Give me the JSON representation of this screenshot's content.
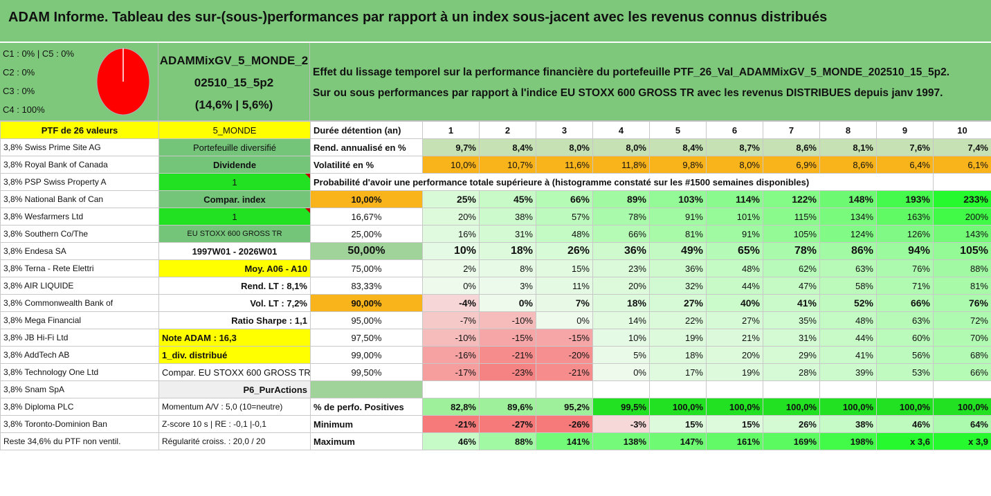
{
  "title": "ADAM Informe. Tableau des sur-(sous-)performances par rapport à un index sous-jacent avec les revenus connus distribués",
  "allocation": [
    "C1 : 0% | C5 : 0%",
    "C2 : 0%",
    "C3 : 0%",
    "C4 : 100%"
  ],
  "pie_colors": {
    "fill": "#ff0000",
    "line": "#ffffff"
  },
  "portfolio_name": {
    "line1": "ADAMMixGV_5_MONDE_2",
    "line2": "02510_15_5p2",
    "line3": "(14,6% | 5,6%)"
  },
  "description": {
    "line1": "Effet du lissage temporel sur la performance financière du portefeuille PTF_26_Val_ADAMMixGV_5_MONDE_202510_15_5p2.",
    "line2": "Sur ou sous performances par rapport à l'indice EU STOXX 600 GROSS TR avec les revenus DISTRIBUES depuis janv 1997."
  },
  "col_a": [
    "PTF de 26 valeurs",
    "3,8% Swiss Prime Site AG",
    "3,8% Royal Bank of Canada",
    "3,8% PSP Swiss Property A",
    "3,8% National Bank of Can",
    "3,8% Wesfarmers Ltd",
    "3,8% Southern Co/The",
    "3,8% Endesa SA",
    "3,8% Terna - Rete Elettri",
    "3,8% AIR LIQUIDE",
    "3,8% Commonwealth Bank of",
    "3,8% Mega Financial",
    "3,8% JB Hi-Fi Ltd",
    "3,8% AddTech AB",
    "3,8% Technology One Ltd",
    "3,8% Snam SpA",
    "3,8% Diploma PLC",
    "3,8% Toronto-Dominion Ban",
    "Reste 34,6% du PTF non ventil."
  ],
  "col_b": [
    "5_MONDE",
    "Portefeuille diversifié",
    "Dividende",
    "1",
    "Compar. index",
    "1",
    "EU STOXX 600 GROSS TR",
    "1997W01 - 2026W01",
    "Moy. A06 - A10",
    "Rend. LT : 8,1%",
    "Vol. LT : 7,2%",
    "Ratio Sharpe : 1,1",
    "Note ADAM : 16,3",
    "1_div. distribué",
    "Compar. EU STOXX 600 GROSS TR",
    "P6_PurActions",
    "Momentum A/V : 5,0 (10=neutre)",
    "Z-score 10 s | RE : -0,1 |-0,1",
    "Régularité croiss. : 20,0 / 20"
  ],
  "years_label": "Durée détention (an)",
  "years": [
    "1",
    "2",
    "3",
    "4",
    "5",
    "6",
    "7",
    "8",
    "9",
    "10"
  ],
  "rend_label": "Rend. annualisé en %",
  "rend": [
    "9,7%",
    "8,4%",
    "8,0%",
    "8,0%",
    "8,4%",
    "8,7%",
    "8,6%",
    "8,1%",
    "7,6%",
    "7,4%"
  ],
  "vol_label": "Volatilité en %",
  "vol": [
    "10,0%",
    "10,7%",
    "11,6%",
    "11,8%",
    "9,8%",
    "8,0%",
    "6,9%",
    "8,6%",
    "6,4%",
    "6,1%"
  ],
  "prob_header": "Probabilité d'avoir une performance totale supérieure à (histogramme constaté sur les #1500 semaines disponibles)",
  "prob_rows": [
    {
      "p": "10,00%",
      "v": [
        "25%",
        "45%",
        "66%",
        "89%",
        "103%",
        "114%",
        "122%",
        "148%",
        "193%",
        "233%"
      ]
    },
    {
      "p": "16,67%",
      "v": [
        "20%",
        "38%",
        "57%",
        "78%",
        "91%",
        "101%",
        "115%",
        "134%",
        "163%",
        "200%"
      ]
    },
    {
      "p": "25,00%",
      "v": [
        "16%",
        "31%",
        "48%",
        "66%",
        "81%",
        "91%",
        "105%",
        "124%",
        "126%",
        "143%"
      ]
    },
    {
      "p": "50,00%",
      "v": [
        "10%",
        "18%",
        "26%",
        "36%",
        "49%",
        "65%",
        "78%",
        "86%",
        "94%",
        "105%"
      ]
    },
    {
      "p": "75,00%",
      "v": [
        "2%",
        "8%",
        "15%",
        "23%",
        "36%",
        "48%",
        "62%",
        "63%",
        "76%",
        "88%"
      ]
    },
    {
      "p": "83,33%",
      "v": [
        "0%",
        "3%",
        "11%",
        "20%",
        "32%",
        "44%",
        "47%",
        "58%",
        "71%",
        "81%"
      ]
    },
    {
      "p": "90,00%",
      "v": [
        "-4%",
        "0%",
        "7%",
        "18%",
        "27%",
        "40%",
        "41%",
        "52%",
        "66%",
        "76%"
      ]
    },
    {
      "p": "95,00%",
      "v": [
        "-7%",
        "-10%",
        "0%",
        "14%",
        "22%",
        "27%",
        "35%",
        "48%",
        "63%",
        "72%"
      ]
    },
    {
      "p": "97,50%",
      "v": [
        "-10%",
        "-15%",
        "-15%",
        "10%",
        "19%",
        "21%",
        "31%",
        "44%",
        "60%",
        "70%"
      ]
    },
    {
      "p": "99,00%",
      "v": [
        "-16%",
        "-21%",
        "-20%",
        "5%",
        "18%",
        "20%",
        "29%",
        "41%",
        "56%",
        "68%"
      ]
    },
    {
      "p": "99,50%",
      "v": [
        "-17%",
        "-23%",
        "-21%",
        "0%",
        "17%",
        "19%",
        "28%",
        "39%",
        "53%",
        "66%"
      ]
    }
  ],
  "pos_label": "% de perfo. Positives",
  "pos": [
    "82,8%",
    "89,6%",
    "95,2%",
    "99,5%",
    "100,0%",
    "100,0%",
    "100,0%",
    "100,0%",
    "100,0%",
    "100,0%"
  ],
  "min_label": "Minimum",
  "min": [
    "-21%",
    "-27%",
    "-26%",
    "-3%",
    "15%",
    "15%",
    "26%",
    "38%",
    "46%",
    "64%"
  ],
  "max_label": "Maximum",
  "max": [
    "46%",
    "88%",
    "141%",
    "138%",
    "147%",
    "161%",
    "169%",
    "198%",
    "x 3,6",
    "x 3,9"
  ]
}
